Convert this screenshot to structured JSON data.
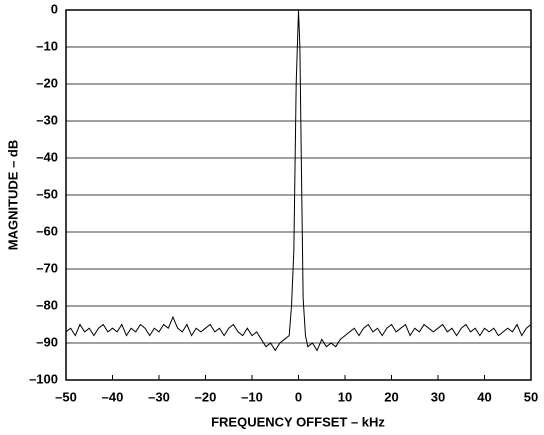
{
  "chart_data": {
    "type": "line",
    "x_label": "FREQUENCY OFFSET – kHz",
    "y_label": "MAGNITUDE – dB",
    "xlim": [
      -50,
      50
    ],
    "ylim": [
      -100,
      0
    ],
    "xticks": [
      {
        "value": -50,
        "label": "–50"
      },
      {
        "value": -40,
        "label": "–40"
      },
      {
        "value": -30,
        "label": "–30"
      },
      {
        "value": -20,
        "label": "–20"
      },
      {
        "value": -10,
        "label": "–10"
      },
      0,
      10,
      20,
      30,
      40,
      50
    ],
    "yticks": [
      0,
      {
        "value": -10,
        "label": "–10"
      },
      {
        "value": -20,
        "label": "–20"
      },
      {
        "value": -30,
        "label": "–30"
      },
      {
        "value": -40,
        "label": "–40"
      },
      {
        "value": -50,
        "label": "–50"
      },
      {
        "value": -60,
        "label": "–60"
      },
      {
        "value": -70,
        "label": "–70"
      },
      {
        "value": -80,
        "label": "–80"
      },
      {
        "value": -90,
        "label": "–90"
      },
      {
        "value": -100,
        "label": "–100"
      }
    ],
    "grid": true,
    "color": "#000000",
    "x": [
      -50,
      -49,
      -48,
      -47,
      -46,
      -45,
      -44,
      -43,
      -42,
      -41,
      -40,
      -39,
      -38,
      -37,
      -36,
      -35,
      -34,
      -33,
      -32,
      -31,
      -30,
      -29,
      -28,
      -27,
      -26,
      -25,
      -24,
      -23,
      -22,
      -21,
      -20,
      -19,
      -18,
      -17,
      -16,
      -15,
      -14,
      -13,
      -12,
      -11,
      -10,
      -9,
      -8,
      -7,
      -6,
      -5,
      -4,
      -3,
      -2,
      -1.5,
      -1,
      -0.5,
      0,
      0.3,
      0.6,
      1,
      1.5,
      2,
      3,
      4,
      5,
      6,
      7,
      8,
      9,
      10,
      11,
      12,
      13,
      14,
      15,
      16,
      17,
      18,
      19,
      20,
      21,
      22,
      23,
      24,
      25,
      26,
      27,
      28,
      29,
      30,
      31,
      32,
      33,
      34,
      35,
      36,
      37,
      38,
      39,
      40,
      41,
      42,
      43,
      44,
      45,
      46,
      47,
      48,
      49,
      50
    ],
    "values": [
      -87,
      -86,
      -88,
      -85,
      -87,
      -86,
      -88,
      -86,
      -85,
      -87,
      -86,
      -87,
      -85,
      -88,
      -86,
      -87,
      -85,
      -86,
      -88,
      -86,
      -87,
      -85,
      -86,
      -83,
      -86,
      -87,
      -85,
      -88,
      -86,
      -87,
      -86,
      -85,
      -87,
      -86,
      -88,
      -86,
      -85,
      -87,
      -88,
      -86,
      -88,
      -87,
      -89,
      -91,
      -90,
      -92,
      -90,
      -89,
      -88,
      -80,
      -65,
      -20,
      0,
      -10,
      -40,
      -78,
      -88,
      -91,
      -90,
      -92,
      -89,
      -91,
      -90,
      -91,
      -89,
      -88,
      -87,
      -86,
      -88,
      -86,
      -85,
      -87,
      -86,
      -88,
      -86,
      -85,
      -87,
      -86,
      -85,
      -88,
      -86,
      -87,
      -85,
      -86,
      -87,
      -86,
      -85,
      -87,
      -86,
      -88,
      -86,
      -85,
      -87,
      -86,
      -88,
      -86,
      -87,
      -86,
      -88,
      -87,
      -86,
      -87,
      -85,
      -88,
      -86,
      -85
    ]
  }
}
